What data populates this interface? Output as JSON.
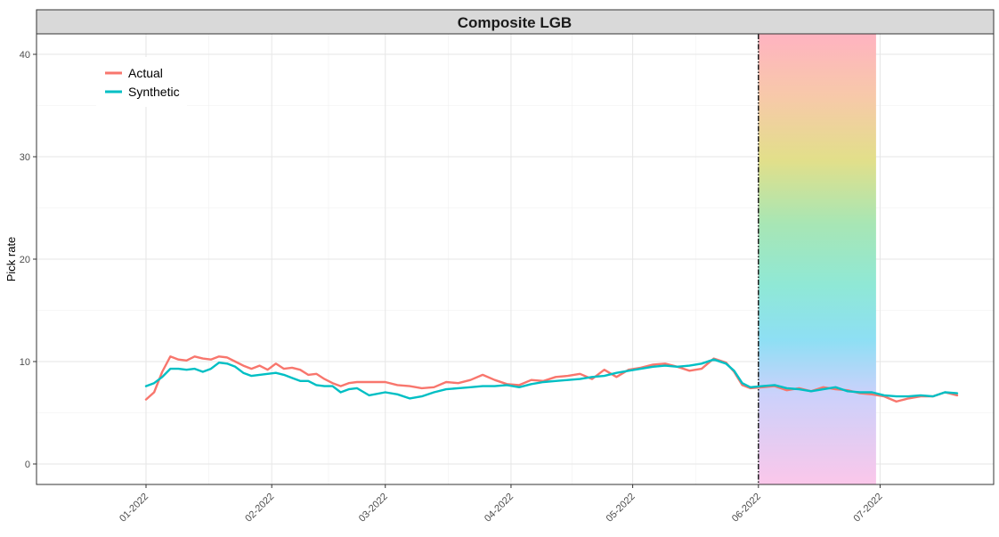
{
  "chart_data": {
    "type": "line",
    "title": "Composite LGB",
    "ylabel": "Pick rate",
    "xlabel": "",
    "ylim": [
      -2,
      42
    ],
    "yticks": [
      0,
      10,
      20,
      30,
      40
    ],
    "x_range": [
      "2021-12-05",
      "2022-07-29"
    ],
    "xticks": [
      {
        "date": "2022-01-01",
        "label": "01-2022"
      },
      {
        "date": "2022-02-01",
        "label": "02-2022"
      },
      {
        "date": "2022-03-01",
        "label": "03-2022"
      },
      {
        "date": "2022-04-01",
        "label": "04-2022"
      },
      {
        "date": "2022-05-01",
        "label": "05-2022"
      },
      {
        "date": "2022-06-01",
        "label": "06-2022"
      },
      {
        "date": "2022-07-01",
        "label": "07-2022"
      }
    ],
    "grid": true,
    "legend_position": "top-left",
    "intervention_date": "2022-06-01",
    "highlight_band": {
      "start": "2022-06-01",
      "end": "2022-06-30"
    },
    "colors": {
      "actual": "#f8766d",
      "synthetic": "#00bfc4",
      "strip_bg": "#d9d9d9"
    },
    "series": [
      {
        "name": "Actual",
        "points": [
          [
            "2022-01-01",
            6.3
          ],
          [
            "2022-01-03",
            7.0
          ],
          [
            "2022-01-05",
            9.0
          ],
          [
            "2022-01-07",
            10.5
          ],
          [
            "2022-01-09",
            10.2
          ],
          [
            "2022-01-11",
            10.1
          ],
          [
            "2022-01-13",
            10.5
          ],
          [
            "2022-01-15",
            10.3
          ],
          [
            "2022-01-17",
            10.2
          ],
          [
            "2022-01-19",
            10.5
          ],
          [
            "2022-01-21",
            10.4
          ],
          [
            "2022-01-23",
            10.0
          ],
          [
            "2022-01-25",
            9.6
          ],
          [
            "2022-01-27",
            9.3
          ],
          [
            "2022-01-29",
            9.6
          ],
          [
            "2022-01-31",
            9.2
          ],
          [
            "2022-02-02",
            9.8
          ],
          [
            "2022-02-04",
            9.3
          ],
          [
            "2022-02-06",
            9.4
          ],
          [
            "2022-02-08",
            9.2
          ],
          [
            "2022-02-10",
            8.7
          ],
          [
            "2022-02-12",
            8.8
          ],
          [
            "2022-02-14",
            8.3
          ],
          [
            "2022-02-16",
            7.9
          ],
          [
            "2022-02-18",
            7.6
          ],
          [
            "2022-02-20",
            7.9
          ],
          [
            "2022-02-22",
            8.0
          ],
          [
            "2022-02-25",
            8.0
          ],
          [
            "2022-03-01",
            8.0
          ],
          [
            "2022-03-04",
            7.7
          ],
          [
            "2022-03-07",
            7.6
          ],
          [
            "2022-03-10",
            7.4
          ],
          [
            "2022-03-13",
            7.5
          ],
          [
            "2022-03-16",
            8.0
          ],
          [
            "2022-03-19",
            7.9
          ],
          [
            "2022-03-22",
            8.2
          ],
          [
            "2022-03-25",
            8.7
          ],
          [
            "2022-03-28",
            8.2
          ],
          [
            "2022-03-31",
            7.8
          ],
          [
            "2022-04-03",
            7.7
          ],
          [
            "2022-04-06",
            8.2
          ],
          [
            "2022-04-09",
            8.1
          ],
          [
            "2022-04-12",
            8.5
          ],
          [
            "2022-04-15",
            8.6
          ],
          [
            "2022-04-18",
            8.8
          ],
          [
            "2022-04-21",
            8.3
          ],
          [
            "2022-04-24",
            9.2
          ],
          [
            "2022-04-27",
            8.5
          ],
          [
            "2022-04-30",
            9.2
          ],
          [
            "2022-05-03",
            9.4
          ],
          [
            "2022-05-06",
            9.7
          ],
          [
            "2022-05-09",
            9.8
          ],
          [
            "2022-05-12",
            9.5
          ],
          [
            "2022-05-15",
            9.1
          ],
          [
            "2022-05-18",
            9.3
          ],
          [
            "2022-05-21",
            10.3
          ],
          [
            "2022-05-24",
            9.9
          ],
          [
            "2022-05-26",
            9.0
          ],
          [
            "2022-05-28",
            7.7
          ],
          [
            "2022-05-30",
            7.4
          ],
          [
            "2022-06-02",
            7.5
          ],
          [
            "2022-06-05",
            7.6
          ],
          [
            "2022-06-08",
            7.2
          ],
          [
            "2022-06-11",
            7.4
          ],
          [
            "2022-06-14",
            7.1
          ],
          [
            "2022-06-17",
            7.5
          ],
          [
            "2022-06-20",
            7.3
          ],
          [
            "2022-06-23",
            7.2
          ],
          [
            "2022-06-26",
            6.9
          ],
          [
            "2022-06-29",
            6.8
          ],
          [
            "2022-07-02",
            6.6
          ],
          [
            "2022-07-05",
            6.1
          ],
          [
            "2022-07-08",
            6.4
          ],
          [
            "2022-07-11",
            6.6
          ],
          [
            "2022-07-14",
            6.6
          ],
          [
            "2022-07-17",
            7.0
          ],
          [
            "2022-07-20",
            6.7
          ]
        ]
      },
      {
        "name": "Synthetic",
        "points": [
          [
            "2022-01-01",
            7.6
          ],
          [
            "2022-01-03",
            7.9
          ],
          [
            "2022-01-05",
            8.5
          ],
          [
            "2022-01-07",
            9.3
          ],
          [
            "2022-01-09",
            9.3
          ],
          [
            "2022-01-11",
            9.2
          ],
          [
            "2022-01-13",
            9.3
          ],
          [
            "2022-01-15",
            9.0
          ],
          [
            "2022-01-17",
            9.3
          ],
          [
            "2022-01-19",
            9.9
          ],
          [
            "2022-01-21",
            9.8
          ],
          [
            "2022-01-23",
            9.5
          ],
          [
            "2022-01-25",
            8.9
          ],
          [
            "2022-01-27",
            8.6
          ],
          [
            "2022-01-29",
            8.7
          ],
          [
            "2022-01-31",
            8.8
          ],
          [
            "2022-02-02",
            8.9
          ],
          [
            "2022-02-04",
            8.7
          ],
          [
            "2022-02-06",
            8.4
          ],
          [
            "2022-02-08",
            8.1
          ],
          [
            "2022-02-10",
            8.1
          ],
          [
            "2022-02-12",
            7.7
          ],
          [
            "2022-02-14",
            7.6
          ],
          [
            "2022-02-16",
            7.6
          ],
          [
            "2022-02-18",
            7.0
          ],
          [
            "2022-02-20",
            7.3
          ],
          [
            "2022-02-22",
            7.4
          ],
          [
            "2022-02-25",
            6.7
          ],
          [
            "2022-03-01",
            7.0
          ],
          [
            "2022-03-04",
            6.8
          ],
          [
            "2022-03-07",
            6.4
          ],
          [
            "2022-03-10",
            6.6
          ],
          [
            "2022-03-13",
            7.0
          ],
          [
            "2022-03-16",
            7.3
          ],
          [
            "2022-03-19",
            7.4
          ],
          [
            "2022-03-22",
            7.5
          ],
          [
            "2022-03-25",
            7.6
          ],
          [
            "2022-03-28",
            7.6
          ],
          [
            "2022-03-31",
            7.7
          ],
          [
            "2022-04-03",
            7.5
          ],
          [
            "2022-04-06",
            7.8
          ],
          [
            "2022-04-09",
            8.0
          ],
          [
            "2022-04-12",
            8.1
          ],
          [
            "2022-04-15",
            8.2
          ],
          [
            "2022-04-18",
            8.3
          ],
          [
            "2022-04-21",
            8.5
          ],
          [
            "2022-04-24",
            8.6
          ],
          [
            "2022-04-27",
            8.9
          ],
          [
            "2022-04-30",
            9.1
          ],
          [
            "2022-05-03",
            9.3
          ],
          [
            "2022-05-06",
            9.5
          ],
          [
            "2022-05-09",
            9.6
          ],
          [
            "2022-05-12",
            9.5
          ],
          [
            "2022-05-15",
            9.6
          ],
          [
            "2022-05-18",
            9.8
          ],
          [
            "2022-05-21",
            10.2
          ],
          [
            "2022-05-24",
            9.8
          ],
          [
            "2022-05-26",
            9.1
          ],
          [
            "2022-05-28",
            7.9
          ],
          [
            "2022-05-30",
            7.5
          ],
          [
            "2022-06-02",
            7.6
          ],
          [
            "2022-06-05",
            7.7
          ],
          [
            "2022-06-08",
            7.4
          ],
          [
            "2022-06-11",
            7.3
          ],
          [
            "2022-06-14",
            7.1
          ],
          [
            "2022-06-17",
            7.3
          ],
          [
            "2022-06-20",
            7.5
          ],
          [
            "2022-06-23",
            7.1
          ],
          [
            "2022-06-26",
            7.0
          ],
          [
            "2022-06-29",
            7.0
          ],
          [
            "2022-07-02",
            6.7
          ],
          [
            "2022-07-05",
            6.6
          ],
          [
            "2022-07-08",
            6.6
          ],
          [
            "2022-07-11",
            6.7
          ],
          [
            "2022-07-14",
            6.6
          ],
          [
            "2022-07-17",
            7.0
          ],
          [
            "2022-07-20",
            6.9
          ]
        ]
      }
    ]
  }
}
